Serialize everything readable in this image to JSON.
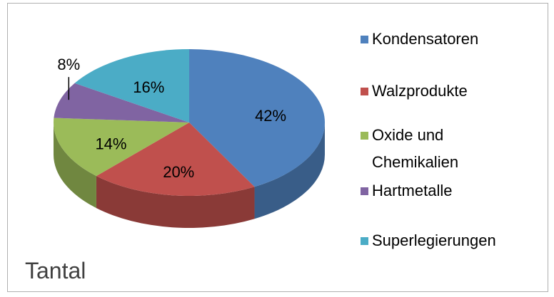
{
  "chart_data": {
    "type": "pie",
    "title": "Tantal",
    "categories": [
      "Kondensatoren",
      "Walzprodukte",
      "Oxide und Chemikalien",
      "Hartmetalle",
      "Superlegierungen"
    ],
    "values": [
      42,
      20,
      14,
      8,
      16
    ],
    "value_labels": [
      "42%",
      "20%",
      "14%",
      "8%",
      "16%"
    ],
    "colors": [
      "#4f81bd",
      "#c0504d",
      "#9bbb59",
      "#8064a2",
      "#4bacc6"
    ],
    "legend": "right"
  }
}
